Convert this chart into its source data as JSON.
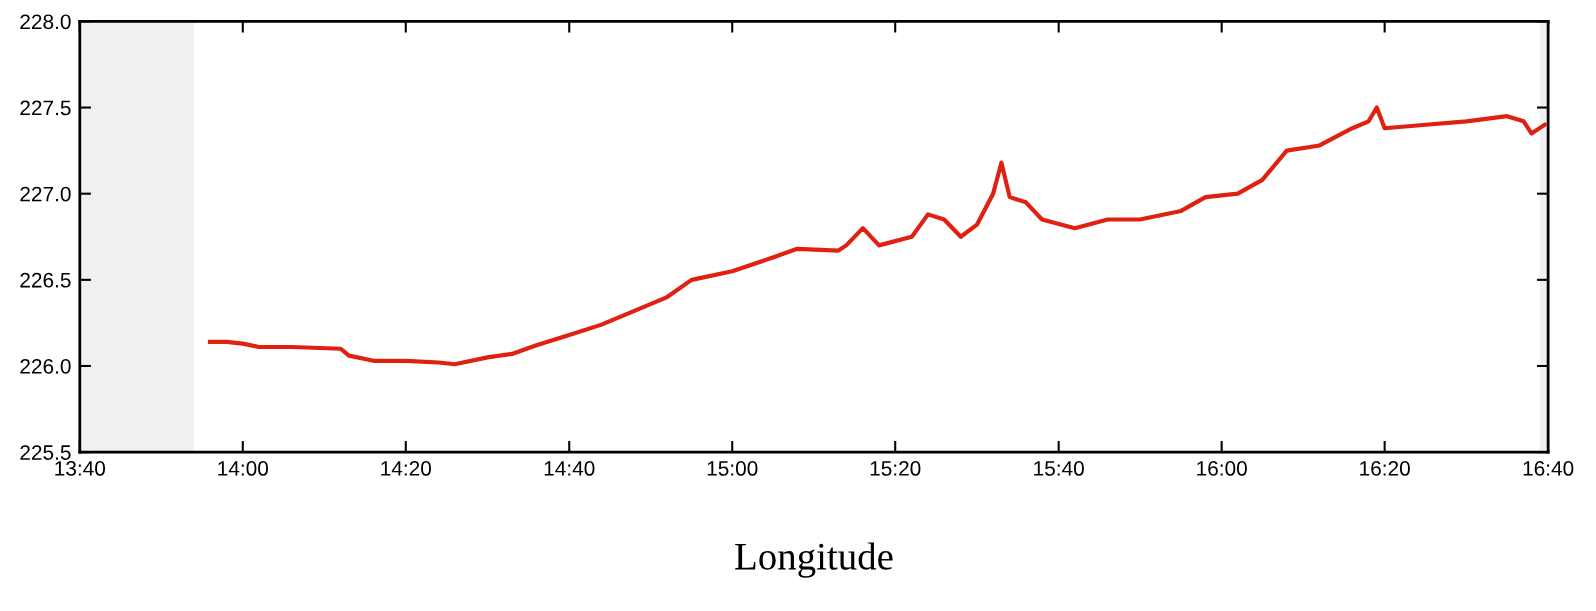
{
  "chart_data": {
    "type": "line",
    "xlabel": "Longitude",
    "x": [
      13.933,
      13.967,
      14,
      14.033,
      14.1,
      14.2,
      14.217,
      14.267,
      14.333,
      14.4,
      14.433,
      14.5,
      14.55,
      14.6,
      14.667,
      14.733,
      14.8,
      14.867,
      14.917,
      15,
      15.083,
      15.133,
      15.217,
      15.233,
      15.267,
      15.3,
      15.367,
      15.4,
      15.433,
      15.467,
      15.5,
      15.533,
      15.55,
      15.567,
      15.6,
      15.633,
      15.7,
      15.767,
      15.833,
      15.917,
      15.967,
      16.033,
      16.083,
      16.133,
      16.2,
      16.267,
      16.3,
      16.317,
      16.333,
      16.417,
      16.5,
      16.583,
      16.617,
      16.633,
      16.66
    ],
    "series": [
      {
        "color": "#e02010",
        "values": [
          226.14,
          226.14,
          226.13,
          226.11,
          226.11,
          226.1,
          226.06,
          226.03,
          226.03,
          226.02,
          226.01,
          226.05,
          226.07,
          226.12,
          226.18,
          226.24,
          226.32,
          226.4,
          226.5,
          226.55,
          226.63,
          226.68,
          226.67,
          226.7,
          226.8,
          226.7,
          226.75,
          226.88,
          226.85,
          226.75,
          226.82,
          227.0,
          227.18,
          226.98,
          226.95,
          226.85,
          226.8,
          226.85,
          226.85,
          226.9,
          226.98,
          227.0,
          227.08,
          227.25,
          227.28,
          227.38,
          227.42,
          227.5,
          227.38,
          227.4,
          227.42,
          227.45,
          227.42,
          227.35,
          227.4
        ]
      }
    ],
    "xlim": [
      13.667,
      16.667
    ],
    "xticks": [
      {
        "value": 13.667,
        "label": "13:40"
      },
      {
        "value": 14,
        "label": "14:00"
      },
      {
        "value": 14.333,
        "label": "14:20"
      },
      {
        "value": 14.667,
        "label": "14:40"
      },
      {
        "value": 15,
        "label": "15:00"
      },
      {
        "value": 15.333,
        "label": "15:20"
      },
      {
        "value": 15.667,
        "label": "15:40"
      },
      {
        "value": 16,
        "label": "16:00"
      },
      {
        "value": 16.333,
        "label": "16:20"
      },
      {
        "value": 16.667,
        "label": "16:40"
      }
    ],
    "ylim": [
      225.5,
      228.0
    ],
    "yticks": [
      {
        "value": 225.5,
        "label": "225.5"
      },
      {
        "value": 226,
        "label": "226.0"
      },
      {
        "value": 226.5,
        "label": "226.5"
      },
      {
        "value": 227,
        "label": "227.0"
      },
      {
        "value": 227.5,
        "label": "227.5"
      },
      {
        "value": 228,
        "label": "228.0"
      }
    ],
    "bands": [
      {
        "axis": "x",
        "from": 13.667,
        "to": 13.9,
        "color": "#f0f0f0"
      },
      {
        "axis": "x",
        "from": 16.65,
        "to": 16.667,
        "color": "#f0f0f0"
      }
    ],
    "grid": false
  }
}
